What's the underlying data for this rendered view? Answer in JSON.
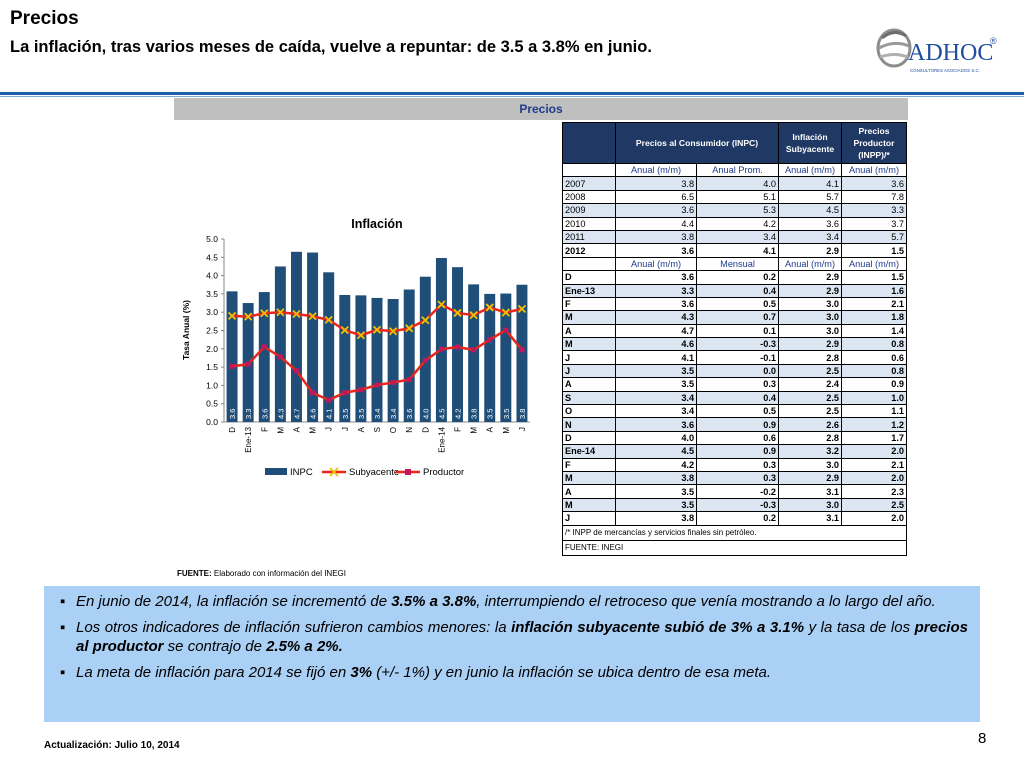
{
  "header": {
    "title": "Precios",
    "subtitle": "La inflación, tras varios meses de caída, vuelve a repuntar: de 3.5 a 3.8% en junio.",
    "logo_text": "ADHOC",
    "logo_reg": "®",
    "logo_tagline": "CONSULTORES ASOCIADOS S.C."
  },
  "panel_title": "Precios",
  "chart_data": {
    "type": "bar",
    "title": "Inflación",
    "ylabel": "Tasa Anual (%)",
    "xlabel": "",
    "ylim": [
      0,
      5.0
    ],
    "yticks": [
      "0.0",
      "0.5",
      "1.0",
      "1.5",
      "2.0",
      "2.5",
      "3.0",
      "3.5",
      "4.0",
      "4.5",
      "5.0"
    ],
    "categories": [
      "D",
      "Ene-13",
      "F",
      "M",
      "A",
      "M",
      "J",
      "J",
      "A",
      "S",
      "O",
      "N",
      "D",
      "Ene-14",
      "F",
      "M",
      "A",
      "M",
      "J"
    ],
    "series": [
      {
        "name": "INPC",
        "kind": "bar",
        "color": "#1f4e79",
        "values": [
          3.57,
          3.25,
          3.55,
          4.25,
          4.65,
          4.63,
          4.09,
          3.47,
          3.46,
          3.39,
          3.36,
          3.62,
          3.97,
          4.48,
          4.23,
          3.76,
          3.5,
          3.51,
          3.75
        ],
        "labels": [
          "3.6",
          "3.3",
          "3.6",
          "4.3",
          "4.7",
          "4.6",
          "4.1",
          "3.5",
          "3.5",
          "3.4",
          "3.4",
          "3.6",
          "4.0",
          "4.5",
          "4.2",
          "3.8",
          "3.5",
          "3.5",
          "3.8"
        ]
      },
      {
        "name": "Subyacente",
        "kind": "line",
        "color": "#e8261c",
        "marker": "x",
        "marker_color": "#f2c200",
        "values": [
          2.9,
          2.88,
          2.97,
          3.0,
          2.95,
          2.89,
          2.79,
          2.51,
          2.37,
          2.52,
          2.48,
          2.56,
          2.78,
          3.21,
          2.98,
          2.92,
          3.13,
          2.99,
          3.09
        ]
      },
      {
        "name": "Productor",
        "kind": "line",
        "color": "#e8261c",
        "marker": "square",
        "marker_color": "#c2185b",
        "values": [
          1.52,
          1.58,
          2.05,
          1.78,
          1.4,
          0.8,
          0.6,
          0.8,
          0.88,
          1.01,
          1.08,
          1.16,
          1.68,
          1.99,
          2.05,
          1.97,
          2.25,
          2.51,
          1.97
        ]
      }
    ],
    "legend": [
      "INPC",
      "Subyacente",
      "Productor"
    ],
    "legend_position": "bottom",
    "grid": false
  },
  "source": {
    "label": "FUENTE:",
    "text": "Elaborado con información del INEGI"
  },
  "table": {
    "header": [
      "",
      "Precios al Consumidor (INPC)",
      "Inflación Subyacente",
      "Precios Productor (INPP)/*"
    ],
    "units_annual": [
      "",
      "Anual (m/m)",
      "Anual Prom.",
      "Anual (m/m)",
      "Anual (m/m)"
    ],
    "annual_rows": [
      [
        "2007",
        "3.8",
        "4.0",
        "4.1",
        "3.6"
      ],
      [
        "2008",
        "6.5",
        "5.1",
        "5.7",
        "7.8"
      ],
      [
        "2009",
        "3.6",
        "5.3",
        "4.5",
        "3.3"
      ],
      [
        "2010",
        "4.4",
        "4.2",
        "3.6",
        "3.7"
      ],
      [
        "2011",
        "3.8",
        "3.4",
        "3.4",
        "5.7"
      ],
      [
        "2012",
        "3.6",
        "4.1",
        "2.9",
        "1.5"
      ]
    ],
    "units_monthly": [
      "",
      "Anual (m/m)",
      "Mensual",
      "Anual (m/m)",
      "Anual (m/m)"
    ],
    "monthly_rows": [
      [
        "D",
        "3.6",
        "0.2",
        "2.9",
        "1.5"
      ],
      [
        "Ene-13",
        "3.3",
        "0.4",
        "2.9",
        "1.6"
      ],
      [
        "F",
        "3.6",
        "0.5",
        "3.0",
        "2.1"
      ],
      [
        "M",
        "4.3",
        "0.7",
        "3.0",
        "1.8"
      ],
      [
        "A",
        "4.7",
        "0.1",
        "3.0",
        "1.4"
      ],
      [
        "M",
        "4.6",
        "-0.3",
        "2.9",
        "0.8"
      ],
      [
        "J",
        "4.1",
        "-0.1",
        "2.8",
        "0.6"
      ],
      [
        "J",
        "3.5",
        "0.0",
        "2.5",
        "0.8"
      ],
      [
        "A",
        "3.5",
        "0.3",
        "2.4",
        "0.9"
      ],
      [
        "S",
        "3.4",
        "0.4",
        "2.5",
        "1.0"
      ],
      [
        "O",
        "3.4",
        "0.5",
        "2.5",
        "1.1"
      ],
      [
        "N",
        "3.6",
        "0.9",
        "2.6",
        "1.2"
      ],
      [
        "D",
        "4.0",
        "0.6",
        "2.8",
        "1.7"
      ],
      [
        "Ene-14",
        "4.5",
        "0.9",
        "3.2",
        "2.0"
      ],
      [
        "F",
        "4.2",
        "0.3",
        "3.0",
        "2.1"
      ],
      [
        "M",
        "3.8",
        "0.3",
        "2.9",
        "2.0"
      ],
      [
        "A",
        "3.5",
        "-0.2",
        "3.1",
        "2.3"
      ],
      [
        "M",
        "3.5",
        "-0.3",
        "3.0",
        "2.5"
      ],
      [
        "J",
        "3.8",
        "0.2",
        "3.1",
        "2.0"
      ]
    ],
    "note": "/* INPP de mercancías y servicios finales sin petróleo.",
    "source": "FUENTE: INEGI"
  },
  "bullets": [
    {
      "parts": [
        {
          "t": "En junio de 2014, la inflación se incrementó de ",
          "b": false
        },
        {
          "t": "3.5% a 3.8%",
          "b": true
        },
        {
          "t": ", interrumpiendo el retroceso que venía mostrando a lo largo del año.",
          "b": false
        }
      ]
    },
    {
      "parts": [
        {
          "t": "Los otros indicadores de inflación  sufrieron cambios menores: la ",
          "b": false
        },
        {
          "t": "inflación subyacente subió de 3% a 3.1%",
          "b": true
        },
        {
          "t": " y la tasa de los ",
          "b": false
        },
        {
          "t": "precios al productor",
          "b": true
        },
        {
          "t": " se contrajo de  ",
          "b": false
        },
        {
          "t": "2.5% a 2%.",
          "b": true
        }
      ]
    },
    {
      "parts": [
        {
          "t": "La meta de inflación para 2014 se fijó en ",
          "b": false
        },
        {
          "t": "3%",
          "b": true
        },
        {
          "t": " (+/- 1%) y en junio la inflación se ubica dentro de esa meta.",
          "b": false
        }
      ]
    }
  ],
  "footer": "Actualización:  Julio 10, 2014",
  "page_number": "8"
}
